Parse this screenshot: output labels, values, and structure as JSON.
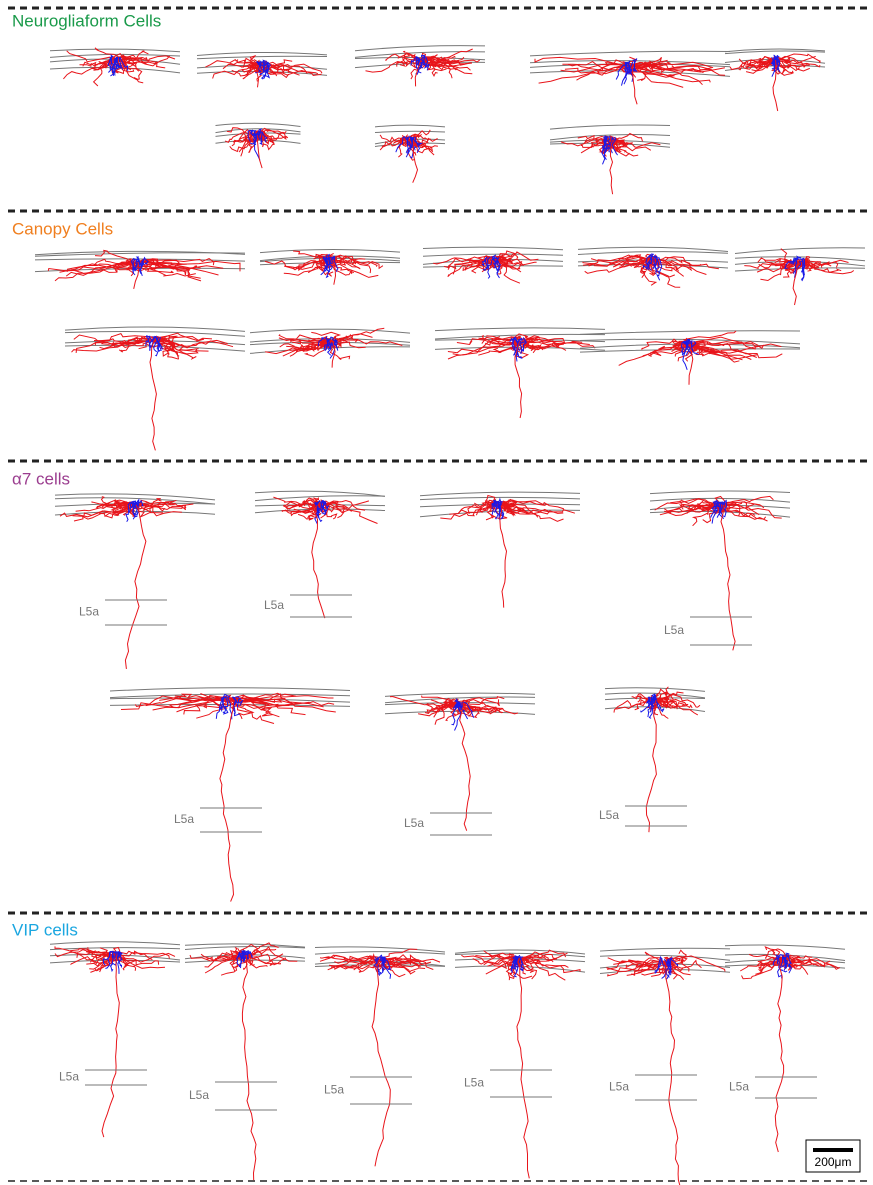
{
  "sections": [
    {
      "title": "Neurogliaform Cells",
      "color": "#1a9a4a"
    },
    {
      "title": "Canopy Cells",
      "color": "#f07f1f"
    },
    {
      "title": "α7 cells",
      "color": "#9b3d8f",
      "layer_labels": [
        "L5a",
        "L5a",
        "L5a",
        "L5a",
        "L5a",
        "L5a"
      ]
    },
    {
      "title": "VIP cells",
      "color": "#1aa6e0",
      "layer_labels": [
        "L5a",
        "L5a",
        "L5a",
        "L5a",
        "L5a",
        "L5a"
      ]
    }
  ],
  "scale_bar": {
    "label": "200μm"
  }
}
